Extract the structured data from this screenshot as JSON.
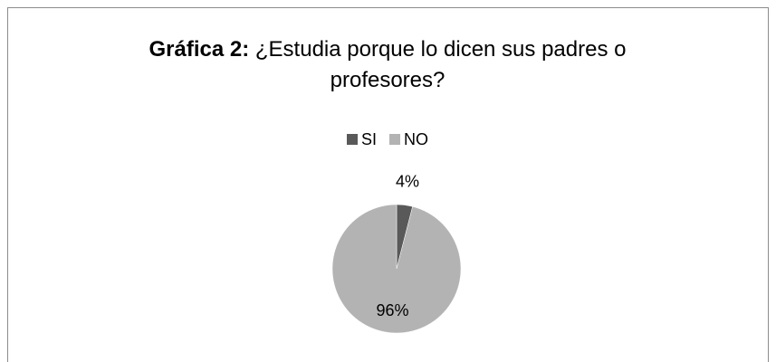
{
  "chart_data": {
    "type": "pie",
    "title": "Gráfica 2:",
    "subtitle": "¿Estudia porque lo dicen sus padres o profesores?",
    "categories": [
      "SI",
      "NO"
    ],
    "values": [
      4,
      96
    ],
    "value_labels": [
      "4%",
      "96%"
    ],
    "colors": [
      "#595959",
      "#b3b3b3"
    ],
    "legend": "top"
  }
}
